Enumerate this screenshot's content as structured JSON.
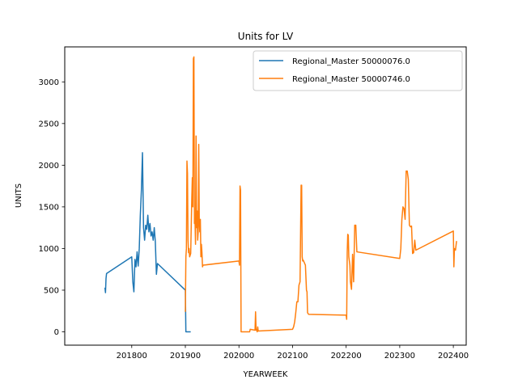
{
  "chart_data": {
    "type": "line",
    "title": "Units for LV",
    "xlabel": "YEARWEEK",
    "ylabel": "UNITS",
    "xlim": [
      201675,
      202424
    ],
    "ylim": [
      -160,
      3420
    ],
    "xticks": [
      201800,
      201900,
      202000,
      202100,
      202200,
      202300,
      202400
    ],
    "yticks": [
      0,
      500,
      1000,
      1500,
      2000,
      2500,
      3000
    ],
    "grid": false,
    "legend_position": "top-right",
    "series": [
      {
        "name": "Regional_Master 50000076.0",
        "color": "#1f77b4",
        "points": [
          [
            201750,
            530
          ],
          [
            201751,
            470
          ],
          [
            201752,
            640
          ],
          [
            201753,
            700
          ],
          [
            201800,
            900
          ],
          [
            201802,
            600
          ],
          [
            201804,
            480
          ],
          [
            201806,
            870
          ],
          [
            201808,
            780
          ],
          [
            201810,
            960
          ],
          [
            201812,
            790
          ],
          [
            201814,
            1000
          ],
          [
            201816,
            1400
          ],
          [
            201818,
            1700
          ],
          [
            201820,
            2150
          ],
          [
            201822,
            1250
          ],
          [
            201824,
            1100
          ],
          [
            201826,
            1280
          ],
          [
            201828,
            1230
          ],
          [
            201830,
            1400
          ],
          [
            201832,
            1200
          ],
          [
            201834,
            1300
          ],
          [
            201836,
            1150
          ],
          [
            201838,
            1200
          ],
          [
            201840,
            1100
          ],
          [
            201842,
            1250
          ],
          [
            201844,
            1080
          ],
          [
            201846,
            690
          ],
          [
            201848,
            820
          ],
          [
            201900,
            500
          ],
          [
            201901,
            0
          ],
          [
            201910,
            0
          ]
        ]
      },
      {
        "name": "Regional_Master 50000746.0",
        "color": "#ff7f0e",
        "points": [
          [
            201900,
            240
          ],
          [
            201901,
            900
          ],
          [
            201902,
            1000
          ],
          [
            201903,
            2050
          ],
          [
            201904,
            1900
          ],
          [
            201905,
            1100
          ],
          [
            201906,
            950
          ],
          [
            201907,
            1000
          ],
          [
            201908,
            900
          ],
          [
            201910,
            940
          ],
          [
            201912,
            1600
          ],
          [
            201913,
            1850
          ],
          [
            201914,
            1500
          ],
          [
            201915,
            3280
          ],
          [
            201916,
            3300
          ],
          [
            201917,
            1300
          ],
          [
            201918,
            1350
          ],
          [
            201919,
            1050
          ],
          [
            201920,
            2350
          ],
          [
            201921,
            1250
          ],
          [
            201922,
            1450
          ],
          [
            201923,
            1100
          ],
          [
            201924,
            1200
          ],
          [
            201925,
            2250
          ],
          [
            201926,
            1300
          ],
          [
            201927,
            1200
          ],
          [
            201928,
            1350
          ],
          [
            201929,
            900
          ],
          [
            201930,
            1050
          ],
          [
            201931,
            950
          ],
          [
            201932,
            780
          ],
          [
            201933,
            800
          ],
          [
            202000,
            850
          ],
          [
            202001,
            800
          ],
          [
            202002,
            1750
          ],
          [
            202003,
            1700
          ],
          [
            202004,
            0
          ],
          [
            202020,
            0
          ],
          [
            202021,
            30
          ],
          [
            202030,
            20
          ],
          [
            202031,
            240
          ],
          [
            202032,
            20
          ],
          [
            202033,
            30
          ],
          [
            202034,
            0
          ],
          [
            202035,
            60
          ],
          [
            202036,
            10
          ],
          [
            202100,
            30
          ],
          [
            202102,
            60
          ],
          [
            202104,
            120
          ],
          [
            202106,
            230
          ],
          [
            202108,
            360
          ],
          [
            202110,
            360
          ],
          [
            202112,
            560
          ],
          [
            202114,
            600
          ],
          [
            202116,
            1760
          ],
          [
            202117,
            1760
          ],
          [
            202118,
            900
          ],
          [
            202119,
            850
          ],
          [
            202120,
            860
          ],
          [
            202124,
            800
          ],
          [
            202126,
            500
          ],
          [
            202127,
            480
          ],
          [
            202128,
            230
          ],
          [
            202130,
            210
          ],
          [
            202200,
            200
          ],
          [
            202201,
            150
          ],
          [
            202202,
            950
          ],
          [
            202203,
            1170
          ],
          [
            202204,
            1160
          ],
          [
            202205,
            900
          ],
          [
            202206,
            850
          ],
          [
            202207,
            800
          ],
          [
            202208,
            600
          ],
          [
            202210,
            510
          ],
          [
            202212,
            930
          ],
          [
            202214,
            600
          ],
          [
            202216,
            1280
          ],
          [
            202218,
            1280
          ],
          [
            202220,
            960
          ],
          [
            202300,
            880
          ],
          [
            202302,
            1000
          ],
          [
            202304,
            1350
          ],
          [
            202306,
            1500
          ],
          [
            202308,
            1480
          ],
          [
            202310,
            1350
          ],
          [
            202312,
            1930
          ],
          [
            202314,
            1930
          ],
          [
            202316,
            1830
          ],
          [
            202318,
            1280
          ],
          [
            202320,
            1260
          ],
          [
            202322,
            1270
          ],
          [
            202324,
            940
          ],
          [
            202326,
            950
          ],
          [
            202328,
            1100
          ],
          [
            202330,
            980
          ],
          [
            202400,
            1210
          ],
          [
            202401,
            780
          ],
          [
            202402,
            1000
          ],
          [
            202404,
            980
          ],
          [
            202406,
            1090
          ]
        ]
      }
    ]
  }
}
